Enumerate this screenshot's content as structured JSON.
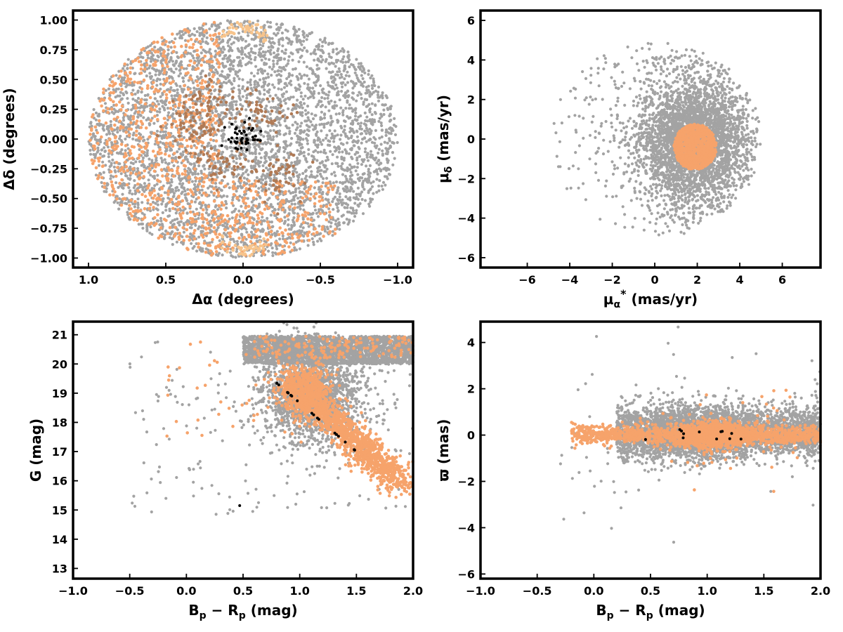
{
  "colors": {
    "field": "#a3a3a3",
    "members": "#f6a36b",
    "members_core": "#b07a55",
    "members_edge": "#f7c48c",
    "highlight": "#000000"
  },
  "chart_data": [
    {
      "id": "sky",
      "type": "scatter",
      "xlabel": "Δα (degrees)",
      "ylabel": "Δδ (degrees)",
      "xlim": [
        1.1,
        -1.1
      ],
      "ylim": [
        -1.08,
        1.08
      ],
      "xticks": [
        1.0,
        0.5,
        0.0,
        -0.5,
        -1.0
      ],
      "xtick_labels": [
        "1.0",
        "0.5",
        "0.0",
        "−0.5",
        "−1.0"
      ],
      "yticks": [
        1.0,
        0.75,
        0.5,
        0.25,
        0.0,
        -0.25,
        -0.5,
        -0.75,
        -1.0
      ],
      "ytick_labels": [
        "1.00",
        "0.75",
        "0.50",
        "0.25",
        "0.00",
        "−0.25",
        "−0.50",
        "−0.75",
        "−1.00"
      ],
      "grid": false,
      "series_summary": [
        {
          "color": "field",
          "region": "disk radius 1.0 deg centred (0,0)"
        },
        {
          "color": "members",
          "region": "eastern half, Δα 0.1 to 1.0"
        },
        {
          "color": "members_core",
          "region": "clumps near Δα 0.0–0.5"
        },
        {
          "color": "highlight",
          "region": "centre within 0.15 deg"
        }
      ]
    },
    {
      "id": "pm",
      "type": "scatter",
      "xlabel": "μα* (mas/yr)",
      "ylabel": "μδ (mas/yr)",
      "xlim": [
        -8.2,
        7.8
      ],
      "ylim": [
        -6.5,
        6.5
      ],
      "xticks": [
        -6,
        -4,
        -2,
        0,
        2,
        4,
        6
      ],
      "xtick_labels": [
        "−6",
        "−4",
        "−2",
        "0",
        "2",
        "4",
        "6"
      ],
      "yticks": [
        6,
        4,
        2,
        0,
        -2,
        -4,
        -6
      ],
      "ytick_labels": [
        "6",
        "4",
        "2",
        "0",
        "−2",
        "−4",
        "−6"
      ],
      "grid": false,
      "series_summary": [
        {
          "color": "field",
          "region": "disk centred (0,0) radius 5, dense near (2,0)"
        },
        {
          "color": "members",
          "region": "clump centred (1.9,-0.4) radius 1"
        }
      ]
    },
    {
      "id": "cmd",
      "type": "scatter",
      "xlabel": "Bp − Rp (mag)",
      "ylabel": "G (mag)",
      "xlim": [
        -1.0,
        2.0
      ],
      "ylim": [
        12.65,
        21.45
      ],
      "xticks": [
        -1.0,
        -0.5,
        0.0,
        0.5,
        1.0,
        1.5,
        2.0
      ],
      "xtick_labels": [
        "−1.0",
        "−0.5",
        "0.0",
        "0.5",
        "1.0",
        "1.5",
        "2.0"
      ],
      "yticks": [
        21,
        20,
        19,
        18,
        17,
        16,
        15,
        14,
        13
      ],
      "ytick_labels": [
        "21",
        "20",
        "19",
        "18",
        "17",
        "16",
        "15",
        "14",
        "13"
      ],
      "grid": false,
      "series_summary": [
        {
          "color": "field",
          "region": "broad band, x 0–2, G 17–21"
        },
        {
          "color": "members",
          "region": "sequence from (1.0,19) to (1.9,15.9)"
        },
        {
          "color": "highlight",
          "region": "scattered along sequence"
        }
      ]
    },
    {
      "id": "parallax",
      "type": "scatter",
      "xlabel": "Bp − Rp (mag)",
      "ylabel": "ϖ (mas)",
      "xlim": [
        -1.0,
        2.0
      ],
      "ylim": [
        -6.2,
        4.9
      ],
      "xticks": [
        -1.0,
        -0.5,
        0.0,
        0.5,
        1.0,
        1.5,
        2.0
      ],
      "xtick_labels": [
        "−1.0",
        "−0.5",
        "0.0",
        "0.5",
        "1.0",
        "1.5",
        "2.0"
      ],
      "yticks": [
        4,
        2,
        0,
        -2,
        -4,
        -6
      ],
      "ytick_labels": [
        "4",
        "2",
        "0",
        "−2",
        "−4",
        "−6"
      ],
      "grid": false,
      "series_summary": [
        {
          "color": "field",
          "region": "horizontal band around ϖ 0, x 0–2"
        },
        {
          "color": "members",
          "region": "narrow band ϖ ≈ 0, x −0.2–2"
        },
        {
          "color": "highlight",
          "region": "few points near (0.6–1.3, 0)"
        }
      ]
    }
  ]
}
